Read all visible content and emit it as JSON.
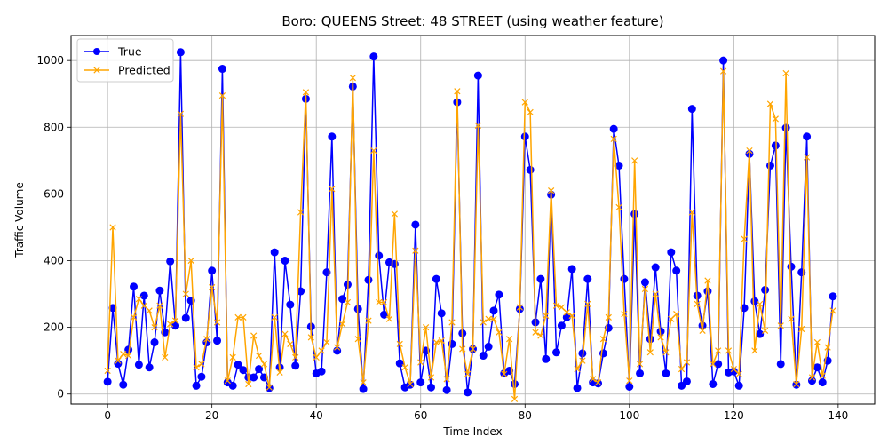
{
  "chart_data": {
    "type": "line",
    "title": "Boro: QUEENS Street: 48 STREET (using weather feature)",
    "xlabel": "Time Index",
    "ylabel": "Traffic Volume",
    "xlim": [
      -7,
      147
    ],
    "ylim": [
      -30,
      1075
    ],
    "xticks": [
      0,
      20,
      40,
      60,
      80,
      100,
      120,
      140
    ],
    "yticks": [
      0,
      200,
      400,
      600,
      800,
      1000
    ],
    "grid": true,
    "legend_position": "upper-left",
    "series": [
      {
        "name": "True",
        "color": "#0000ff",
        "marker": "circle",
        "values": [
          37,
          258,
          91,
          28,
          133,
          322,
          88,
          295,
          80,
          155,
          310,
          185,
          398,
          205,
          1025,
          228,
          280,
          25,
          52,
          155,
          370,
          160,
          975,
          35,
          25,
          88,
          72,
          50,
          50,
          75,
          50,
          18,
          425,
          80,
          400,
          268,
          85,
          308,
          885,
          202,
          62,
          68,
          365,
          772,
          130,
          285,
          328,
          922,
          255,
          15,
          342,
          1012,
          415,
          238,
          395,
          390,
          92,
          20,
          28,
          508,
          35,
          130,
          20,
          345,
          242,
          12,
          150,
          875,
          182,
          5,
          135,
          955,
          115,
          142,
          250,
          298,
          62,
          70,
          30,
          255,
          772,
          672,
          215,
          345,
          105,
          598,
          125,
          205,
          230,
          375,
          18,
          122,
          345,
          35,
          32,
          122,
          198,
          795,
          685,
          345,
          22,
          540,
          62,
          335,
          165,
          380,
          188,
          62,
          425,
          370,
          25,
          38,
          855,
          295,
          205,
          308,
          30,
          90,
          1000,
          65,
          68,
          25,
          258,
          720,
          278,
          180,
          312,
          685,
          745,
          90,
          798,
          382,
          28,
          365,
          772,
          40,
          80,
          35,
          100,
          293
        ]
      },
      {
        "name": "Predicted",
        "color": "#ffa500",
        "marker": "x",
        "values": [
          70,
          500,
          100,
          120,
          115,
          230,
          285,
          265,
          250,
          200,
          265,
          110,
          210,
          220,
          840,
          300,
          400,
          80,
          90,
          165,
          320,
          215,
          895,
          40,
          110,
          230,
          230,
          30,
          175,
          115,
          90,
          20,
          230,
          65,
          180,
          150,
          110,
          545,
          905,
          170,
          110,
          130,
          155,
          615,
          140,
          210,
          275,
          948,
          165,
          35,
          220,
          730,
          275,
          275,
          225,
          540,
          150,
          80,
          30,
          430,
          95,
          200,
          50,
          155,
          160,
          45,
          215,
          908,
          135,
          60,
          135,
          805,
          215,
          225,
          225,
          185,
          60,
          165,
          -15,
          260,
          875,
          845,
          185,
          175,
          235,
          610,
          265,
          260,
          245,
          235,
          75,
          100,
          270,
          45,
          35,
          165,
          230,
          765,
          560,
          240,
          40,
          700,
          90,
          315,
          125,
          300,
          170,
          125,
          225,
          240,
          75,
          95,
          545,
          270,
          190,
          340,
          90,
          130,
          968,
          130,
          75,
          60,
          465,
          730,
          130,
          270,
          190,
          870,
          825,
          205,
          962,
          225,
          30,
          195,
          710,
          50,
          155,
          55,
          140,
          250
        ]
      }
    ]
  }
}
